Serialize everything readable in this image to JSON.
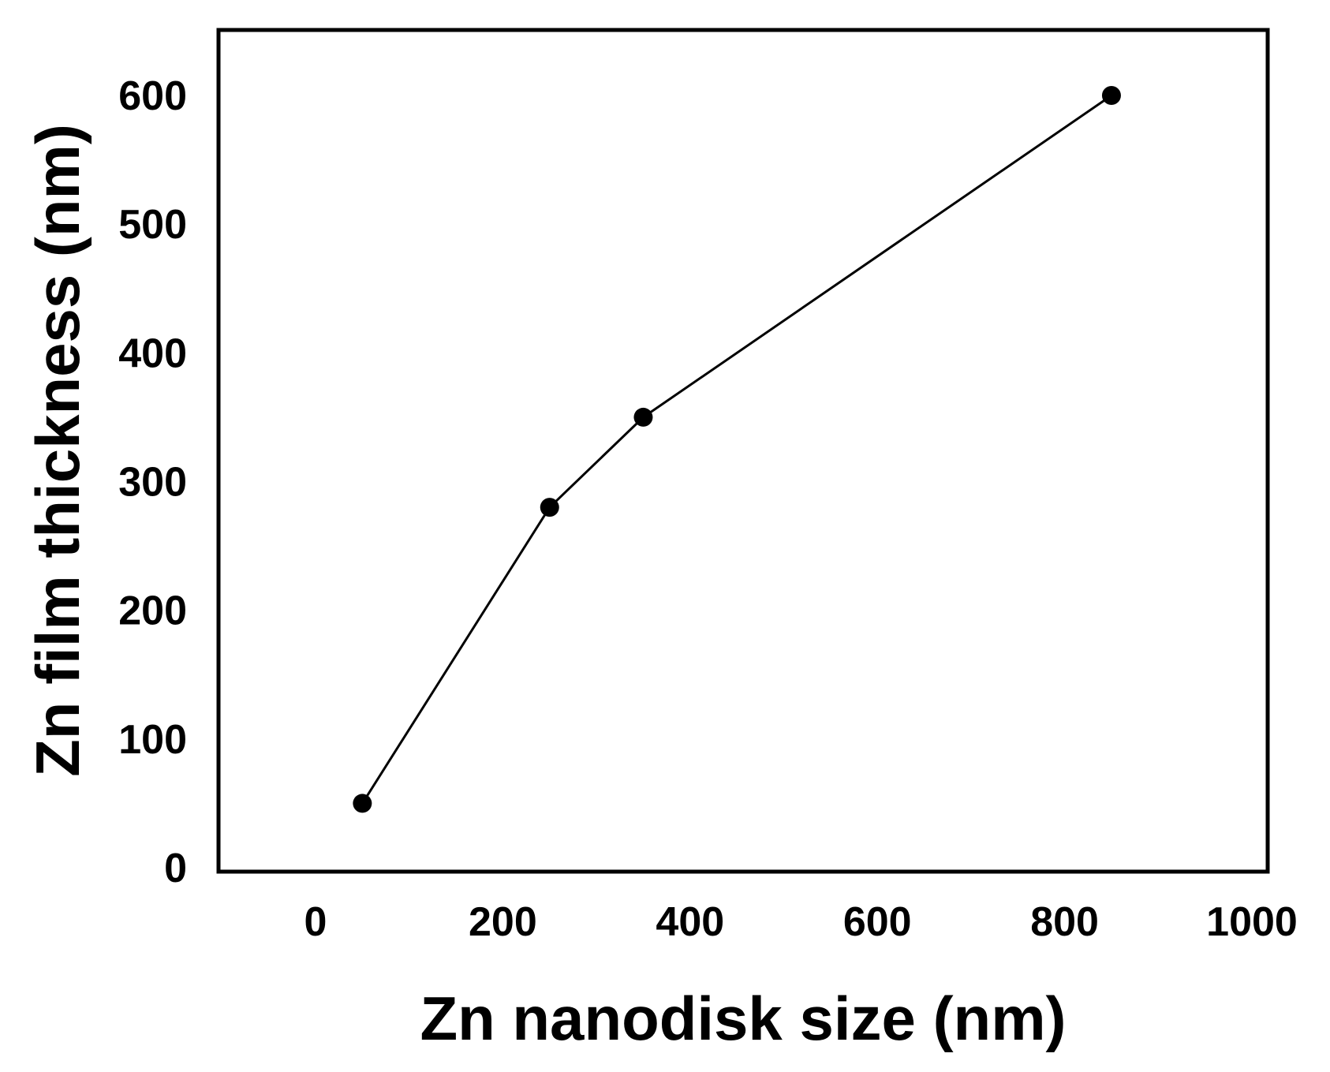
{
  "chart_data": {
    "type": "line",
    "xlabel": "Zn nanodisk size (nm)",
    "ylabel": "Zn film thickness (nm)",
    "xlim": [
      -100,
      1000
    ],
    "ylim": [
      0,
      650
    ],
    "xticks": [
      0,
      200,
      400,
      600,
      800,
      1000
    ],
    "yticks": [
      0,
      100,
      200,
      300,
      400,
      500,
      600
    ],
    "xtick_labels": [
      "0",
      "200",
      "400",
      "600",
      "800",
      "1000"
    ],
    "ytick_labels": [
      "0",
      "100",
      "200",
      "300",
      "400",
      "500",
      "600"
    ],
    "grid": false,
    "series": [
      {
        "x": [
          50,
          250,
          350,
          850
        ],
        "y": [
          50,
          280,
          350,
          600
        ],
        "color": "#000000",
        "marker": "circle"
      }
    ]
  }
}
